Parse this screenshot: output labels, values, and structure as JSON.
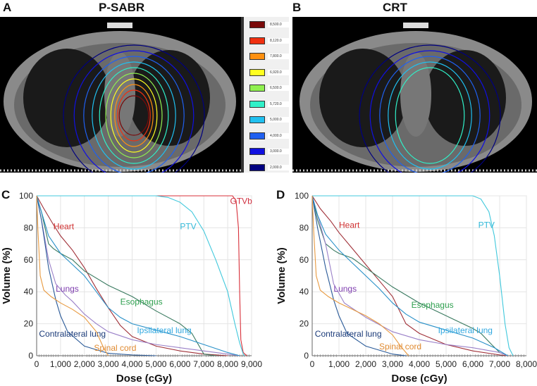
{
  "panels": {
    "A": {
      "letter": "A",
      "title": "P-SABR"
    },
    "B": {
      "letter": "B",
      "title": "CRT"
    },
    "C": {
      "letter": "C"
    },
    "D": {
      "letter": "D"
    }
  },
  "isodose_legend": [
    {
      "value": "8,500.0",
      "color": "#7a0a0a"
    },
    {
      "value": "8,120.0",
      "color": "#f03010"
    },
    {
      "value": "7,800.0",
      "color": "#ff9010"
    },
    {
      "value": "6,920.0",
      "color": "#ffff20"
    },
    {
      "value": "6,500.0",
      "color": "#90f050"
    },
    {
      "value": "5,720.0",
      "color": "#30f0c8"
    },
    {
      "value": "5,000.0",
      "color": "#20c0f0"
    },
    {
      "value": "4,000.0",
      "color": "#2060f0"
    },
    {
      "value": "3,000.0",
      "color": "#1010e0"
    },
    {
      "value": "2,000.0",
      "color": "#000080"
    }
  ],
  "chart_data": [
    {
      "type": "line",
      "panel": "C",
      "xlabel": "Dose (cGy)",
      "ylabel": "Volume (%)",
      "xlim": [
        0,
        9000
      ],
      "ylim": [
        0,
        100
      ],
      "grid": true,
      "xticks": [
        "0",
        "1,000",
        "2,000",
        "3,000",
        "4,000",
        "5,000",
        "6,000",
        "7,000",
        "8,000",
        "9,000"
      ],
      "yticks": [
        "0",
        "20",
        "40",
        "60",
        "80",
        "100"
      ],
      "series": [
        {
          "name": "GTVb",
          "color": "#d8303a",
          "points": [
            [
              0,
              100
            ],
            [
              8200,
              100
            ],
            [
              8350,
              97
            ],
            [
              8450,
              80
            ],
            [
              8500,
              40
            ],
            [
              8550,
              10
            ],
            [
              8650,
              2
            ],
            [
              8800,
              0
            ]
          ]
        },
        {
          "name": "PTV",
          "color": "#40c8dc",
          "points": [
            [
              0,
              100
            ],
            [
              5000,
              100
            ],
            [
              5500,
              99
            ],
            [
              6000,
              96
            ],
            [
              6500,
              90
            ],
            [
              7000,
              78
            ],
            [
              7500,
              60
            ],
            [
              8000,
              40
            ],
            [
              8300,
              20
            ],
            [
              8500,
              8
            ],
            [
              8650,
              1
            ],
            [
              8700,
              0
            ]
          ]
        },
        {
          "name": "Heart",
          "color": "#a03038",
          "points": [
            [
              0,
              100
            ],
            [
              300,
              92
            ],
            [
              700,
              82
            ],
            [
              1000,
              75
            ],
            [
              1500,
              66
            ],
            [
              2000,
              55
            ],
            [
              2500,
              42
            ],
            [
              3000,
              30
            ],
            [
              3500,
              19
            ],
            [
              4000,
              12
            ],
            [
              5000,
              6
            ],
            [
              6000,
              3
            ],
            [
              7000,
              1
            ],
            [
              8000,
              0
            ]
          ]
        },
        {
          "name": "Esophagus",
          "color": "#3a7a60",
          "points": [
            [
              0,
              100
            ],
            [
              200,
              90
            ],
            [
              500,
              70
            ],
            [
              700,
              67
            ],
            [
              1000,
              64
            ],
            [
              1500,
              60
            ],
            [
              2000,
              53
            ],
            [
              3000,
              44
            ],
            [
              4000,
              37
            ],
            [
              5000,
              28
            ],
            [
              6000,
              20
            ],
            [
              6500,
              14
            ],
            [
              7000,
              1
            ],
            [
              7500,
              0
            ]
          ]
        },
        {
          "name": "Lungs",
          "color": "#9a80c8",
          "points": [
            [
              0,
              100
            ],
            [
              200,
              85
            ],
            [
              500,
              60
            ],
            [
              800,
              45
            ],
            [
              1200,
              38
            ],
            [
              1500,
              34
            ],
            [
              2000,
              26
            ],
            [
              2500,
              20
            ],
            [
              3000,
              15
            ],
            [
              4000,
              10
            ],
            [
              5000,
              7
            ],
            [
              6000,
              5
            ],
            [
              7000,
              3
            ],
            [
              8000,
              1
            ],
            [
              8500,
              0
            ]
          ]
        },
        {
          "name": "Contralateral lung",
          "color": "#2a5a98",
          "points": [
            [
              0,
              100
            ],
            [
              200,
              85
            ],
            [
              500,
              55
            ],
            [
              800,
              35
            ],
            [
              1000,
              25
            ],
            [
              1300,
              15
            ],
            [
              2000,
              6
            ],
            [
              3000,
              1.5
            ],
            [
              4000,
              0.5
            ],
            [
              5000,
              0
            ]
          ]
        },
        {
          "name": "Ipsilateral lung",
          "color": "#2890c8",
          "points": [
            [
              0,
              100
            ],
            [
              200,
              90
            ],
            [
              500,
              75
            ],
            [
              1000,
              64
            ],
            [
              1500,
              57
            ],
            [
              2000,
              50
            ],
            [
              2500,
              40
            ],
            [
              3000,
              30
            ],
            [
              3500,
              24
            ],
            [
              4000,
              20
            ],
            [
              5000,
              16
            ],
            [
              6000,
              12
            ],
            [
              7000,
              7
            ],
            [
              8000,
              2
            ],
            [
              8500,
              0
            ]
          ]
        },
        {
          "name": "Spinal cord",
          "color": "#e89a40",
          "points": [
            [
              0,
              100
            ],
            [
              50,
              80
            ],
            [
              150,
              50
            ],
            [
              300,
              41
            ],
            [
              600,
              37
            ],
            [
              1000,
              33
            ],
            [
              1500,
              29
            ],
            [
              2000,
              24
            ],
            [
              2500,
              15
            ],
            [
              2800,
              5
            ],
            [
              3000,
              0
            ]
          ]
        }
      ]
    },
    {
      "type": "line",
      "panel": "D",
      "xlabel": "Dose (cGy)",
      "ylabel": "Volume (%)",
      "xlim": [
        0,
        8000
      ],
      "ylim": [
        0,
        100
      ],
      "grid": true,
      "xticks": [
        "0",
        "1,000",
        "2,000",
        "3,000",
        "4,000",
        "5,000",
        "6,000",
        "7,000",
        "8,000"
      ],
      "yticks": [
        "0",
        "20",
        "40",
        "60",
        "80",
        "100"
      ],
      "series": [
        {
          "name": "PTV",
          "color": "#40c8dc",
          "points": [
            [
              0,
              100
            ],
            [
              6000,
              100
            ],
            [
              6300,
              98
            ],
            [
              6600,
              90
            ],
            [
              6800,
              75
            ],
            [
              7000,
              50
            ],
            [
              7200,
              20
            ],
            [
              7350,
              5
            ],
            [
              7500,
              0
            ]
          ]
        },
        {
          "name": "Heart",
          "color": "#a03038",
          "points": [
            [
              0,
              100
            ],
            [
              300,
              92
            ],
            [
              700,
              84
            ],
            [
              1000,
              77
            ],
            [
              1500,
              67
            ],
            [
              2000,
              57
            ],
            [
              2500,
              47
            ],
            [
              3000,
              37
            ],
            [
              3500,
              20
            ],
            [
              4000,
              14
            ],
            [
              5000,
              7
            ],
            [
              6000,
              3
            ],
            [
              7000,
              0.5
            ],
            [
              7300,
              0
            ]
          ]
        },
        {
          "name": "Esophagus",
          "color": "#3a7a60",
          "points": [
            [
              0,
              100
            ],
            [
              200,
              85
            ],
            [
              500,
              70
            ],
            [
              800,
              66
            ],
            [
              1000,
              64
            ],
            [
              1500,
              61
            ],
            [
              2000,
              55
            ],
            [
              3000,
              43
            ],
            [
              4000,
              33
            ],
            [
              5000,
              25
            ],
            [
              6000,
              17
            ],
            [
              6300,
              14
            ],
            [
              6700,
              7
            ],
            [
              7000,
              2
            ],
            [
              7300,
              0
            ]
          ]
        },
        {
          "name": "Lungs",
          "color": "#9a80c8",
          "points": [
            [
              0,
              100
            ],
            [
              200,
              88
            ],
            [
              500,
              70
            ],
            [
              800,
              45
            ],
            [
              1200,
              33
            ],
            [
              2000,
              24
            ],
            [
              3000,
              15
            ],
            [
              4000,
              10
            ],
            [
              5000,
              7
            ],
            [
              6000,
              5
            ],
            [
              7000,
              2
            ],
            [
              7300,
              0
            ]
          ]
        },
        {
          "name": "Contralateral lung",
          "color": "#2a5a98",
          "points": [
            [
              0,
              100
            ],
            [
              200,
              80
            ],
            [
              500,
              55
            ],
            [
              800,
              35
            ],
            [
              1000,
              25
            ],
            [
              1300,
              14
            ],
            [
              2000,
              6
            ],
            [
              3000,
              1
            ],
            [
              3500,
              0
            ]
          ]
        },
        {
          "name": "Ipsilateral lung",
          "color": "#2890c8",
          "points": [
            [
              0,
              100
            ],
            [
              200,
              88
            ],
            [
              500,
              76
            ],
            [
              1000,
              66
            ],
            [
              1500,
              58
            ],
            [
              2000,
              50
            ],
            [
              2500,
              42
            ],
            [
              3000,
              33
            ],
            [
              3500,
              26
            ],
            [
              4000,
              21
            ],
            [
              5000,
              16
            ],
            [
              6000,
              11
            ],
            [
              6800,
              5
            ],
            [
              7300,
              0
            ]
          ]
        },
        {
          "name": "Spinal cord",
          "color": "#e89a40",
          "points": [
            [
              0,
              100
            ],
            [
              50,
              80
            ],
            [
              150,
              50
            ],
            [
              300,
              41
            ],
            [
              600,
              37
            ],
            [
              1000,
              33
            ],
            [
              1500,
              29
            ],
            [
              2000,
              25
            ],
            [
              2500,
              20
            ],
            [
              3000,
              13
            ],
            [
              3300,
              6
            ],
            [
              3600,
              0
            ]
          ]
        }
      ]
    }
  ],
  "label_colors": {
    "GTVb": "#d03040",
    "PTV": "#30b8d8",
    "Heart": "#d03030",
    "Esophagus": "#30a050",
    "Lungs": "#8040b0",
    "Contralateral lung": "#1a3a78",
    "Ipsilateral lung": "#30a8e0",
    "Spinal cord": "#e08a30"
  }
}
